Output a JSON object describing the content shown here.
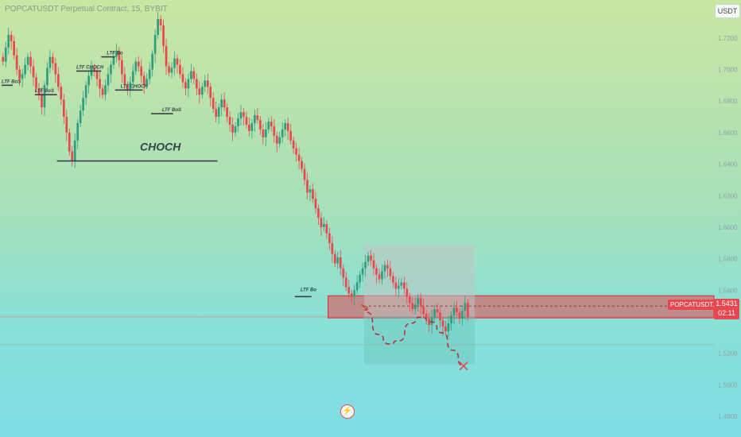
{
  "window": {
    "title": "POPCATUSDT Perpetual Contract, 15, BYBIT"
  },
  "chart_data": {
    "type": "candlestick",
    "symbol": "POPCATUSDT.P",
    "exchange": "BYBIT",
    "interval": "15",
    "unit": "USDT",
    "last_price": "1.5431",
    "countdown": "02:11",
    "y_ticks": [
      "1.7200",
      "1.7000",
      "1.6800",
      "1.6600",
      "1.6400",
      "1.6200",
      "1.6000",
      "1.5800",
      "1.5600",
      "1.5200",
      "1.5000",
      "1.4800"
    ],
    "ylim": [
      1.472,
      1.734
    ],
    "grid": false,
    "series": [
      {
        "name": "price",
        "values": [
          1.705,
          1.714,
          1.722,
          1.718,
          1.709,
          1.7,
          1.694,
          1.697,
          1.703,
          1.708,
          1.702,
          1.695,
          1.688,
          1.684,
          1.676,
          1.69,
          1.701,
          1.708,
          1.704,
          1.697,
          1.689,
          1.681,
          1.67,
          1.66,
          1.648,
          1.642,
          1.655,
          1.666,
          1.674,
          1.682,
          1.69,
          1.696,
          1.701,
          1.699,
          1.694,
          1.688,
          1.684,
          1.69,
          1.697,
          1.703,
          1.708,
          1.712,
          1.706,
          1.697,
          1.69,
          1.687,
          1.692,
          1.699,
          1.705,
          1.702,
          1.696,
          1.69,
          1.694,
          1.7,
          1.71,
          1.722,
          1.732,
          1.728,
          1.715,
          1.702,
          1.698,
          1.701,
          1.707,
          1.703,
          1.697,
          1.692,
          1.688,
          1.694,
          1.699,
          1.694,
          1.688,
          1.684,
          1.689,
          1.693,
          1.689,
          1.682,
          1.675,
          1.67,
          1.676,
          1.681,
          1.676,
          1.67,
          1.665,
          1.66,
          1.664,
          1.669,
          1.673,
          1.67,
          1.665,
          1.661,
          1.666,
          1.671,
          1.668,
          1.662,
          1.657,
          1.662,
          1.667,
          1.664,
          1.658,
          1.653,
          1.657,
          1.662,
          1.666,
          1.661,
          1.655,
          1.65,
          1.646,
          1.642,
          1.637,
          1.63,
          1.622,
          1.624,
          1.618,
          1.612,
          1.606,
          1.6,
          1.602,
          1.596,
          1.59,
          1.583,
          1.577,
          1.581,
          1.574,
          1.568,
          1.562,
          1.558,
          1.556,
          1.56,
          1.565,
          1.57,
          1.574,
          1.578,
          1.582,
          1.579,
          1.574,
          1.57,
          1.567,
          1.572,
          1.576,
          1.574,
          1.569,
          1.565,
          1.561,
          1.563,
          1.565,
          1.561,
          1.556,
          1.552,
          1.548,
          1.551,
          1.555,
          1.55,
          1.545,
          1.542,
          1.538,
          1.543,
          1.548,
          1.546,
          1.541,
          1.537,
          1.534,
          1.539,
          1.544,
          1.549,
          1.546,
          1.542,
          1.547,
          1.552,
          1.5431
        ]
      }
    ],
    "projection": {
      "type": "dashed-path",
      "values": [
        1.546,
        1.532,
        1.526,
        1.528,
        1.539,
        1.543,
        1.54,
        1.533,
        1.522,
        1.512
      ]
    },
    "annotations": [
      {
        "text": "LTF BoS",
        "x": 0,
        "y": 1.69
      },
      {
        "text": "LTF BoS",
        "x": 12,
        "y": 1.684
      },
      {
        "text": "LTF CHOCH",
        "x": 27,
        "y": 1.699
      },
      {
        "text": "LTF Bo",
        "x": 38,
        "y": 1.708
      },
      {
        "text": "LTF CHOCH",
        "x": 43,
        "y": 1.687
      },
      {
        "text": "LTF BoS",
        "x": 58,
        "y": 1.672
      },
      {
        "text": "CHOCH",
        "x": 50,
        "y": 1.647,
        "big": true
      },
      {
        "text": "LTF Bo",
        "x": 108,
        "y": 1.558
      }
    ],
    "levels": [
      {
        "name": "choch-line",
        "y": 1.642,
        "x_from": 20,
        "x_to": 78
      },
      {
        "name": "ltf-line-1",
        "y": 1.69,
        "x_from": 0,
        "x_to": 4
      },
      {
        "name": "ltf-line-2",
        "y": 1.684,
        "x_from": 12,
        "x_to": 20
      },
      {
        "name": "ltf-line-3",
        "y": 1.699,
        "x_from": 27,
        "x_to": 36
      },
      {
        "name": "ltf-line-4",
        "y": 1.708,
        "x_from": 36,
        "x_to": 41
      },
      {
        "name": "ltf-line-5",
        "y": 1.687,
        "x_from": 41,
        "x_to": 51
      },
      {
        "name": "ltf-line-6",
        "y": 1.672,
        "x_from": 54,
        "x_to": 62
      },
      {
        "name": "ltf-line-7",
        "y": 1.556,
        "x_from": 106,
        "x_to": 112
      }
    ],
    "zones": [
      {
        "name": "supply-zone",
        "y_from": 1.5425,
        "y_to": 1.5565,
        "x_from": 118,
        "x_to": 400,
        "color": "#e8474f"
      },
      {
        "name": "target-box",
        "y_from": 1.513,
        "y_to": 1.5435,
        "x_from": 131,
        "x_to": 171,
        "color": "#6fc8bd"
      },
      {
        "name": "stop-box",
        "y_from": 1.5435,
        "y_to": 1.589,
        "x_from": 131,
        "x_to": 171,
        "color": "#c4c4c4"
      }
    ],
    "horizontal_lines": [
      {
        "name": "last-price-line",
        "y": 1.5431,
        "color": "#e88a8f"
      },
      {
        "name": "support-line",
        "y": 1.5255,
        "color": "#9ab7b3"
      }
    ],
    "entry_marker": {
      "y": 1.549
    }
  },
  "colors": {
    "up": "#2f9e7f",
    "down": "#e8474f",
    "text": "#34444a",
    "muted": "#8aa4a0"
  }
}
